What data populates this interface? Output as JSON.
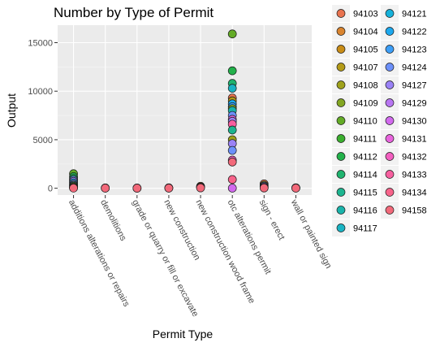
{
  "chart_data": {
    "type": "scatter",
    "title": "Number by Type of Permit",
    "xlabel": "Permit Type",
    "ylabel": "Output",
    "categories": [
      "additions alterations or repairs",
      "demolitions",
      "grade or quarry or fill or excavate",
      "new construction",
      "new construction wood frame",
      "otc alterations permit",
      "sign - erect",
      "wall or painted sign"
    ],
    "ylim": [
      -700,
      16800
    ],
    "yticks": [
      0,
      5000,
      10000,
      15000
    ],
    "ytick_labels": [
      "0",
      "5000",
      "10000",
      "15000"
    ],
    "grid": true,
    "legend_position": "right",
    "legend_entries": [
      {
        "name": "94103",
        "color": "#E8734F"
      },
      {
        "name": "94104",
        "color": "#D9842F"
      },
      {
        "name": "94105",
        "color": "#C88C16"
      },
      {
        "name": "94107",
        "color": "#B39A17"
      },
      {
        "name": "94108",
        "color": "#9EA11A"
      },
      {
        "name": "94109",
        "color": "#83A622"
      },
      {
        "name": "94110",
        "color": "#63AB26"
      },
      {
        "name": "94111",
        "color": "#3AAE2E"
      },
      {
        "name": "94112",
        "color": "#22B14A"
      },
      {
        "name": "94114",
        "color": "#1EB36E"
      },
      {
        "name": "94115",
        "color": "#1CB48F"
      },
      {
        "name": "94116",
        "color": "#19B3AA"
      },
      {
        "name": "94117",
        "color": "#18B3C3"
      },
      {
        "name": "94121",
        "color": "#16B1DA"
      },
      {
        "name": "94122",
        "color": "#1CA8EE"
      },
      {
        "name": "94123",
        "color": "#3C9EF7"
      },
      {
        "name": "94124",
        "color": "#6C90FA"
      },
      {
        "name": "94127",
        "color": "#9A82F6"
      },
      {
        "name": "94129",
        "color": "#B876F2"
      },
      {
        "name": "94130",
        "color": "#D26AEE"
      },
      {
        "name": "94131",
        "color": "#E863DD"
      },
      {
        "name": "94132",
        "color": "#F35FC0"
      },
      {
        "name": "94133",
        "color": "#F75F9F"
      },
      {
        "name": "94134",
        "color": "#F7638A"
      },
      {
        "name": "94158",
        "color": "#F2697A"
      }
    ],
    "points": [
      {
        "x": "additions alterations or repairs",
        "y": 1500,
        "zip": "94110"
      },
      {
        "x": "additions alterations or repairs",
        "y": 1200,
        "zip": "94112"
      },
      {
        "x": "additions alterations or repairs",
        "y": 1000,
        "zip": "94114"
      },
      {
        "x": "additions alterations or repairs",
        "y": 850,
        "zip": "94124"
      },
      {
        "x": "additions alterations or repairs",
        "y": 700,
        "zip": "94127"
      },
      {
        "x": "additions alterations or repairs",
        "y": 550,
        "zip": "94122"
      },
      {
        "x": "additions alterations or repairs",
        "y": 400,
        "zip": "94131"
      },
      {
        "x": "additions alterations or repairs",
        "y": 300,
        "zip": "94117"
      },
      {
        "x": "additions alterations or repairs",
        "y": 200,
        "zip": "94109"
      },
      {
        "x": "additions alterations or repairs",
        "y": 100,
        "zip": "94133"
      },
      {
        "x": "additions alterations or repairs",
        "y": 50,
        "zip": "94134"
      },
      {
        "x": "additions alterations or repairs",
        "y": 20,
        "zip": "94158"
      },
      {
        "x": "demolitions",
        "y": 30,
        "zip": "94110"
      },
      {
        "x": "demolitions",
        "y": 20,
        "zip": "94124"
      },
      {
        "x": "demolitions",
        "y": 10,
        "zip": "94158"
      },
      {
        "x": "grade or quarry or fill or excavate",
        "y": 20,
        "zip": "94110"
      },
      {
        "x": "grade or quarry or fill or excavate",
        "y": 10,
        "zip": "94127"
      },
      {
        "x": "grade or quarry or fill or excavate",
        "y": 5,
        "zip": "94158"
      },
      {
        "x": "new construction",
        "y": 40,
        "zip": "94107"
      },
      {
        "x": "new construction",
        "y": 20,
        "zip": "94124"
      },
      {
        "x": "new construction",
        "y": 10,
        "zip": "94158"
      },
      {
        "x": "new construction wood frame",
        "y": 200,
        "zip": "94104"
      },
      {
        "x": "new construction wood frame",
        "y": 120,
        "zip": "94110"
      },
      {
        "x": "new construction wood frame",
        "y": 80,
        "zip": "94124"
      },
      {
        "x": "new construction wood frame",
        "y": 40,
        "zip": "94158"
      },
      {
        "x": "otc alterations permit",
        "y": 15900,
        "zip": "94110"
      },
      {
        "x": "otc alterations permit",
        "y": 12100,
        "zip": "94112"
      },
      {
        "x": "otc alterations permit",
        "y": 10800,
        "zip": "94114"
      },
      {
        "x": "otc alterations permit",
        "y": 10300,
        "zip": "94117"
      },
      {
        "x": "otc alterations permit",
        "y": 9300,
        "zip": "94103"
      },
      {
        "x": "otc alterations permit",
        "y": 9000,
        "zip": "94107"
      },
      {
        "x": "otc alterations permit",
        "y": 8700,
        "zip": "94122"
      },
      {
        "x": "otc alterations permit",
        "y": 8400,
        "zip": "94123"
      },
      {
        "x": "otc alterations permit",
        "y": 8200,
        "zip": "94109"
      },
      {
        "x": "otc alterations permit",
        "y": 8000,
        "zip": "94116"
      },
      {
        "x": "otc alterations permit",
        "y": 7500,
        "zip": "94124"
      },
      {
        "x": "otc alterations permit",
        "y": 7100,
        "zip": "94131"
      },
      {
        "x": "otc alterations permit",
        "y": 6900,
        "zip": "94127"
      },
      {
        "x": "otc alterations permit",
        "y": 6600,
        "zip": "94133"
      },
      {
        "x": "otc alterations permit",
        "y": 6000,
        "zip": "94115"
      },
      {
        "x": "otc alterations permit",
        "y": 5000,
        "zip": "94108"
      },
      {
        "x": "otc alterations permit",
        "y": 4600,
        "zip": "94127"
      },
      {
        "x": "otc alterations permit",
        "y": 3900,
        "zip": "94124"
      },
      {
        "x": "otc alterations permit",
        "y": 2900,
        "zip": "94132"
      },
      {
        "x": "otc alterations permit",
        "y": 2700,
        "zip": "94158"
      },
      {
        "x": "otc alterations permit",
        "y": 900,
        "zip": "94134"
      },
      {
        "x": "otc alterations permit",
        "y": 10,
        "zip": "94130"
      },
      {
        "x": "sign - erect",
        "y": 450,
        "zip": "94103"
      },
      {
        "x": "sign - erect",
        "y": 300,
        "zip": "94110"
      },
      {
        "x": "sign - erect",
        "y": 200,
        "zip": "94127"
      },
      {
        "x": "sign - erect",
        "y": 100,
        "zip": "94133"
      },
      {
        "x": "sign - erect",
        "y": 30,
        "zip": "94158"
      },
      {
        "x": "wall or painted sign",
        "y": 50,
        "zip": "94110"
      },
      {
        "x": "wall or painted sign",
        "y": 30,
        "zip": "94127"
      },
      {
        "x": "wall or painted sign",
        "y": 10,
        "zip": "94158"
      }
    ]
  }
}
